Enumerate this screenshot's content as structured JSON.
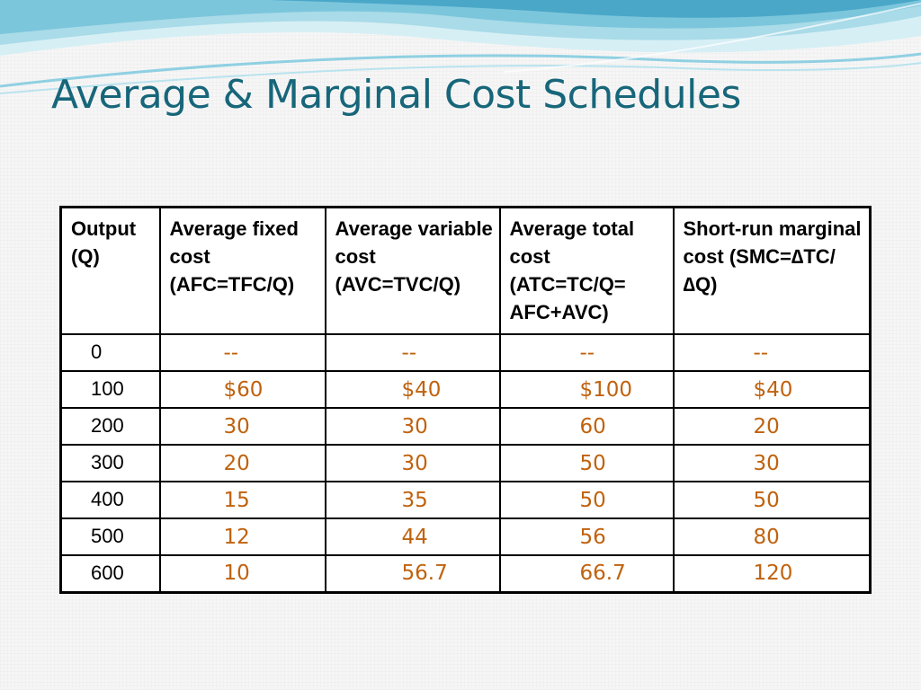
{
  "slide": {
    "title": "Average & Marginal Cost Schedules"
  },
  "table": {
    "headers": [
      "Output (Q)",
      "Average fixed cost (AFC=TFC/Q)",
      "Average variable cost (AVC=TVC/Q)",
      "Average total cost (ATC=TC/Q= AFC+AVC)",
      "Short-run marginal cost (SMC=∆TC/∆Q)"
    ],
    "rows": [
      {
        "q": "0",
        "afc": "--",
        "avc": "--",
        "atc": "--",
        "smc": "--"
      },
      {
        "q": "100",
        "afc": "$60",
        "avc": "$40",
        "atc": "$100",
        "smc": "$40"
      },
      {
        "q": "200",
        "afc": "30",
        "avc": "30",
        "atc": "60",
        "smc": "20"
      },
      {
        "q": "300",
        "afc": "20",
        "avc": "30",
        "atc": "50",
        "smc": "30"
      },
      {
        "q": "400",
        "afc": "15",
        "avc": "35",
        "atc": "50",
        "smc": "50"
      },
      {
        "q": "500",
        "afc": "12",
        "avc": "44",
        "atc": "56",
        "smc": "80"
      },
      {
        "q": "600",
        "afc": "10",
        "avc": "56.7",
        "atc": "66.7",
        "smc": "120"
      }
    ]
  },
  "colors": {
    "title": "#17667a",
    "values": "#c0620e",
    "swoosh_light": "#bfe6ef",
    "swoosh_mid": "#5fb6cf",
    "swoosh_dark": "#2a8fb0"
  }
}
